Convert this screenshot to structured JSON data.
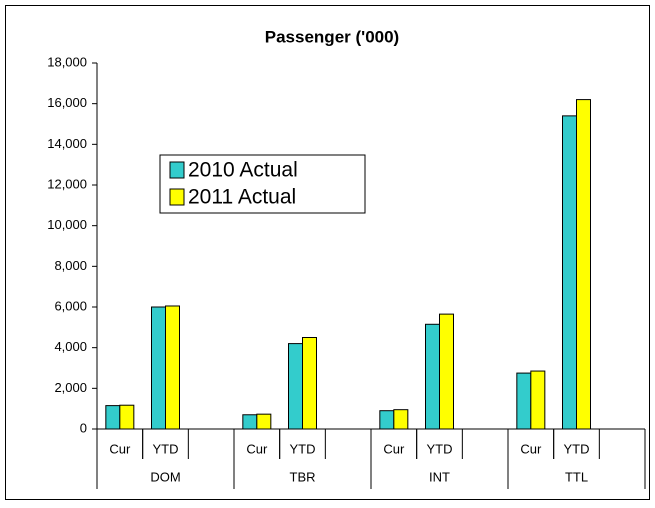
{
  "chart_data": {
    "type": "bar",
    "title": "Passenger ('000)",
    "categories": [
      "Cur",
      "YTD",
      null,
      "Cur",
      "YTD",
      null,
      "Cur",
      "YTD",
      null,
      "Cur",
      "YTD",
      null
    ],
    "groups": [
      "DOM",
      "TBR",
      "INT",
      "TTL"
    ],
    "series": [
      {
        "name": "2010 Actual",
        "color": "#33cccc",
        "values": [
          1150,
          6000,
          null,
          700,
          4200,
          null,
          900,
          5150,
          null,
          2750,
          15400,
          null
        ]
      },
      {
        "name": "2011 Actual",
        "color": "#ffff00",
        "values": [
          1170,
          6050,
          null,
          730,
          4500,
          null,
          950,
          5650,
          null,
          2850,
          16200,
          null
        ]
      }
    ],
    "ylim": [
      0,
      18000
    ],
    "yticks": [
      0,
      {
        "value": 2000,
        "label": "2,000"
      },
      {
        "value": 4000,
        "label": "4,000"
      },
      {
        "value": 6000,
        "label": "6,000"
      },
      {
        "value": 8000,
        "label": "8,000"
      },
      {
        "value": 10000,
        "label": "10,000"
      },
      {
        "value": 12000,
        "label": "12,000"
      },
      {
        "value": 14000,
        "label": "14,000"
      },
      {
        "value": 16000,
        "label": "16,000"
      },
      {
        "value": 18000,
        "label": "18,000"
      }
    ],
    "grid": false
  }
}
